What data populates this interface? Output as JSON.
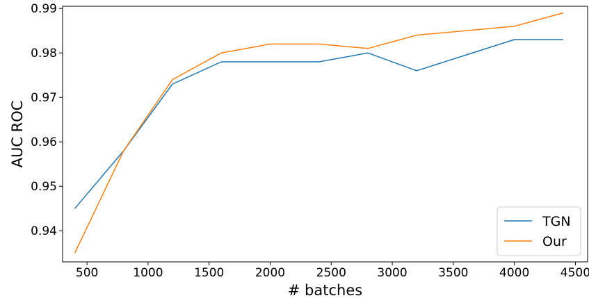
{
  "chart_data": {
    "type": "line",
    "xlabel": "# batches",
    "ylabel": "AUC ROC",
    "xlim": [
      300,
      4600
    ],
    "ylim": [
      0.933,
      0.9905
    ],
    "xticks": [
      500,
      1000,
      1500,
      2000,
      2500,
      3000,
      3500,
      4000,
      4500
    ],
    "yticks": [
      0.94,
      0.95,
      0.96,
      0.97,
      0.98,
      0.99
    ],
    "xtick_labels": [
      "500",
      "1000",
      "1500",
      "2000",
      "2500",
      "3000",
      "3500",
      "4000",
      "4500"
    ],
    "ytick_labels": [
      "0.94",
      "0.95",
      "0.96",
      "0.97",
      "0.98",
      "0.99"
    ],
    "grid": false,
    "legend_position": "lower-right",
    "series": [
      {
        "name": "TGN",
        "color": "#1f77b4",
        "x": [
          400,
          800,
          1200,
          1600,
          2000,
          2400,
          2800,
          3200,
          3600,
          4000,
          4400
        ],
        "y": [
          0.945,
          0.958,
          0.973,
          0.978,
          0.978,
          0.978,
          0.98,
          0.976,
          0.9795,
          0.983,
          0.983
        ]
      },
      {
        "name": "Our",
        "color": "#ff7f0e",
        "x": [
          400,
          800,
          1200,
          1600,
          2000,
          2400,
          2800,
          3200,
          3600,
          4000,
          4400
        ],
        "y": [
          0.935,
          0.958,
          0.974,
          0.98,
          0.982,
          0.982,
          0.981,
          0.984,
          0.985,
          0.986,
          0.989
        ]
      }
    ]
  }
}
